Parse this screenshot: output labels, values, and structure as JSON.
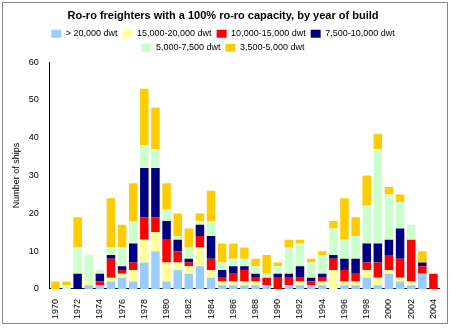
{
  "chart_data": {
    "type": "bar",
    "title": "Ro-ro freighters with a 100% ro-ro capacity, by year of build",
    "y_label": "Number of ships",
    "categories": [
      "1970",
      null,
      "1972",
      null,
      "1974",
      null,
      "1976",
      null,
      "1978",
      null,
      "1980",
      null,
      "1982",
      null,
      "1984",
      null,
      "1986",
      null,
      "1988",
      null,
      "1990",
      null,
      "1992",
      null,
      "1994",
      null,
      "1996",
      null,
      "1998",
      null,
      "2000",
      null,
      "2002",
      null,
      "2004"
    ],
    "series": [
      {
        "name": "> 20,000 dwt",
        "color": "#99ccff",
        "values": [
          0,
          0,
          0,
          1,
          1,
          2,
          3,
          2,
          7,
          10,
          2,
          5,
          4,
          6,
          3,
          1,
          1,
          1,
          1,
          1,
          0,
          1,
          1,
          1,
          1,
          0,
          1,
          1,
          3,
          1,
          4,
          2,
          1,
          4,
          0
        ]
      },
      {
        "name": "15,000-20,000 dwt",
        "color": "#ffff99",
        "values": [
          0,
          0,
          0,
          1,
          0,
          1,
          1,
          3,
          6,
          5,
          5,
          2,
          2,
          5,
          2,
          1,
          1,
          1,
          1,
          0,
          0,
          0,
          1,
          0,
          1,
          5,
          1,
          1,
          2,
          2,
          1,
          1,
          1,
          0,
          0
        ]
      },
      {
        "name": "10,000-15,000 dwt",
        "color": "#ff0000",
        "values": [
          0,
          0,
          0,
          0,
          1,
          5,
          1,
          2,
          6,
          4,
          6,
          3,
          1,
          3,
          3,
          1,
          2,
          3,
          1,
          2,
          3,
          2,
          1,
          1,
          1,
          3,
          3,
          2,
          2,
          4,
          4,
          5,
          11,
          2,
          4
        ]
      },
      {
        "name": "7,500-10,000 dwt",
        "color": "#000080",
        "values": [
          0,
          0,
          4,
          0,
          2,
          1,
          1,
          5,
          13,
          13,
          5,
          3,
          1,
          3,
          6,
          2,
          2,
          1,
          1,
          0,
          1,
          1,
          3,
          1,
          1,
          1,
          3,
          4,
          5,
          5,
          4,
          8,
          0,
          1,
          0
        ]
      },
      {
        "name": "5,000-7,500 dwt",
        "color": "#ccffcc",
        "values": [
          0,
          1,
          7,
          7,
          1,
          2,
          5,
          6,
          6,
          5,
          3,
          1,
          3,
          1,
          4,
          2,
          2,
          2,
          2,
          1,
          2,
          7,
          6,
          4,
          5,
          7,
          5,
          6,
          10,
          25,
          12,
          7,
          4,
          0,
          0
        ]
      },
      {
        "name": "3,500-5,000 dwt",
        "color": "#ffcc00",
        "values": [
          2,
          1,
          8,
          0,
          0,
          13,
          6,
          10,
          15,
          11,
          7,
          6,
          5,
          2,
          8,
          5,
          4,
          3,
          2,
          5,
          1,
          2,
          1,
          1,
          1,
          2,
          11,
          5,
          8,
          4,
          2,
          2,
          0,
          3,
          0
        ]
      }
    ],
    "ylim": [
      0,
      60
    ],
    "yticks": [
      0,
      10,
      20,
      30,
      40,
      50,
      60
    ],
    "stacked": true,
    "grid": false,
    "legend": "top"
  }
}
